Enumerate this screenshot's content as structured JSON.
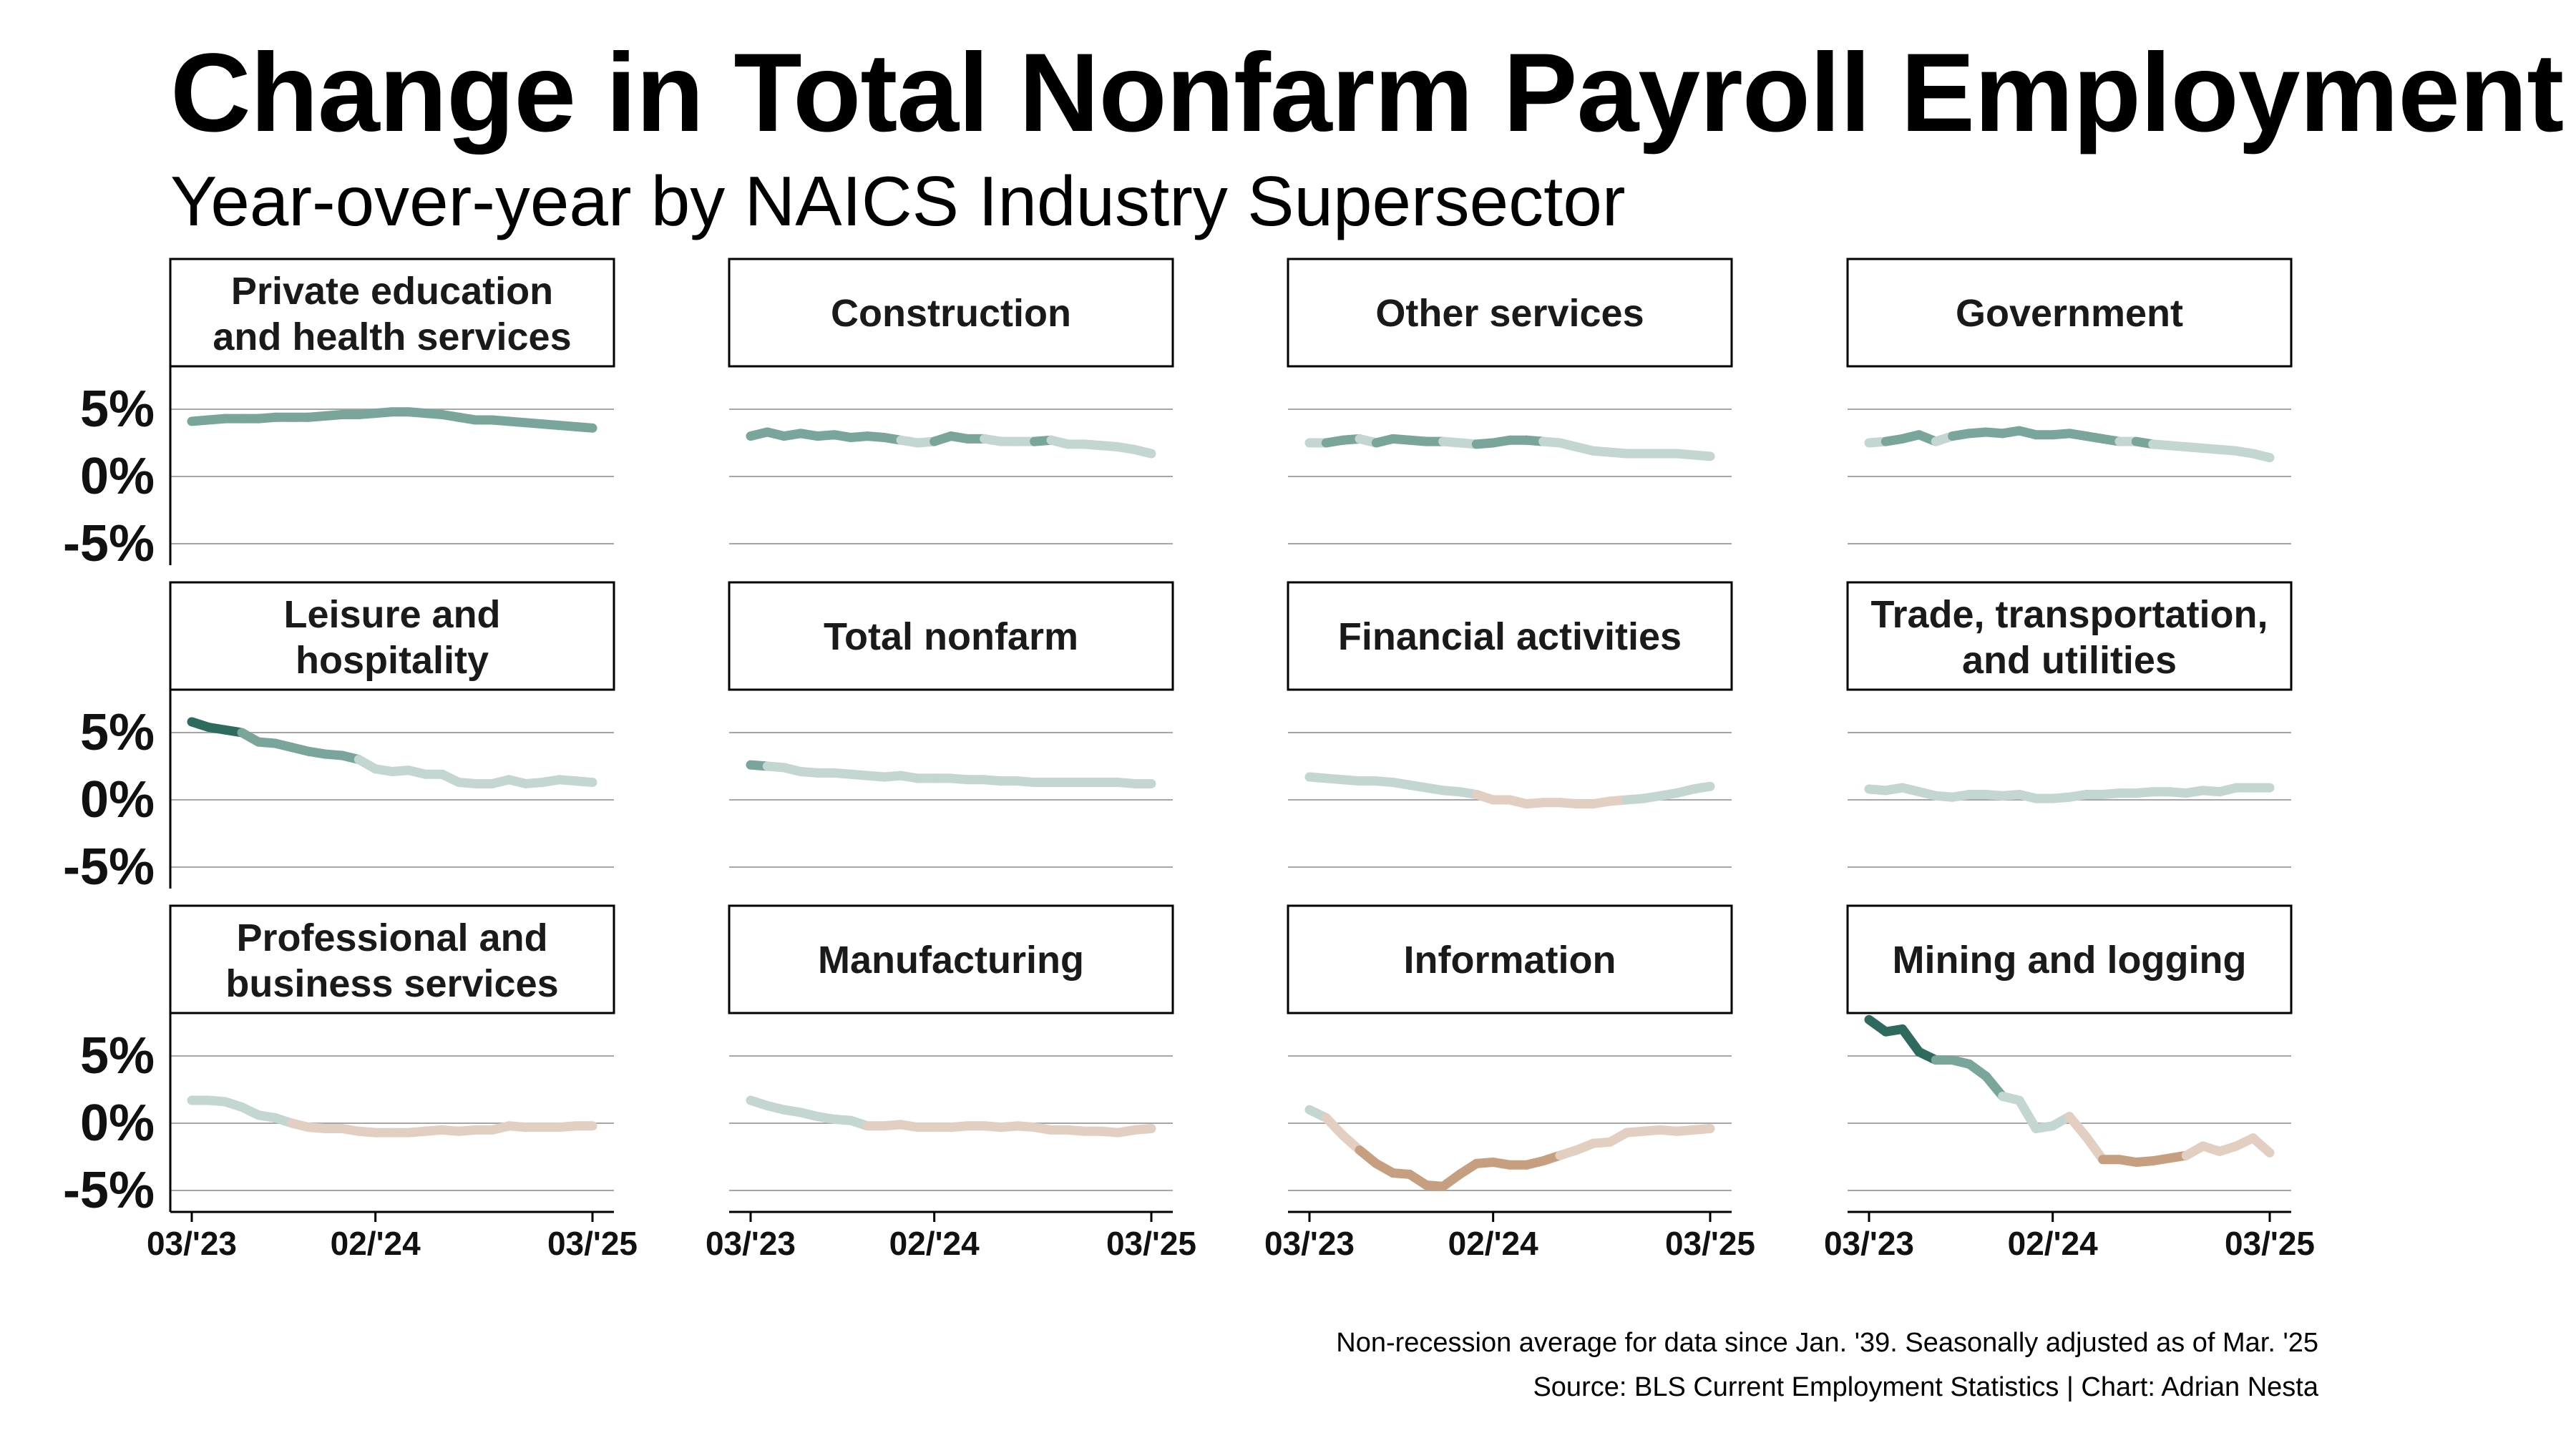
{
  "title": "Change in Total Nonfarm Payroll Employment",
  "subtitle": "Year-over-year by NAICS Industry Supersector",
  "caption": {
    "line1": "Non-recession average for data since Jan. '39. Seasonally adjusted as of Mar. '25",
    "line2": "Source: BLS Current Employment Statistics | Chart: Adrian Nesta"
  },
  "colors": {
    "strong_green": "#2e6b5e",
    "medium_green": "#7aa59b",
    "light_green": "#c3d6d1",
    "light_tan": "#e3cfc2",
    "medium_tan": "#c69f80",
    "grid": "#a6a6a6",
    "frame": "#000000"
  },
  "chart_data": {
    "type": "line",
    "layout": "small-multiples facet grid, 3 rows x 4 columns",
    "title": "Change in Total Nonfarm Payroll Employment",
    "subtitle": "Year-over-year by NAICS Industry Supersector",
    "ylabel": "",
    "xlabel": "",
    "ylim": [
      -5,
      5
    ],
    "yticks": [
      5,
      0,
      -5
    ],
    "ytick_labels": [
      "5%",
      "0%",
      "-5%"
    ],
    "xticks": [
      0,
      11,
      24
    ],
    "xtick_labels": [
      "03/'23",
      "02/'24",
      "03/'25"
    ],
    "x_range": [
      0,
      24
    ],
    "x_description": "monthly, Mar 2023 to Mar 2025",
    "color_rule": "segments colored by distance from non-recession average: darker green = above, light green = near, tan = below",
    "panels": [
      {
        "name": "Private education and health services",
        "color": "medium_green",
        "values": [
          4.1,
          4.2,
          4.3,
          4.3,
          4.3,
          4.4,
          4.4,
          4.4,
          4.5,
          4.6,
          4.6,
          4.7,
          4.8,
          4.8,
          4.7,
          4.6,
          4.4,
          4.2,
          4.2,
          4.1,
          4.0,
          3.9,
          3.8,
          3.7,
          3.6
        ]
      },
      {
        "name": "Construction",
        "color": "medium_green",
        "values": [
          3.0,
          3.3,
          3.0,
          3.2,
          3.0,
          3.1,
          2.9,
          3.0,
          2.9,
          2.7,
          2.5,
          2.6,
          3.0,
          2.8,
          2.8,
          2.6,
          2.6,
          2.6,
          2.7,
          2.4,
          2.4,
          2.3,
          2.2,
          2.0,
          1.7
        ],
        "segment_colors": [
          "medium_green",
          "medium_green",
          "medium_green",
          "medium_green",
          "medium_green",
          "medium_green",
          "medium_green",
          "medium_green",
          "medium_green",
          "light_green",
          "light_green",
          "medium_green",
          "medium_green",
          "medium_green",
          "light_green",
          "light_green",
          "light_green",
          "medium_green",
          "light_green",
          "light_green",
          "light_green",
          "light_green",
          "light_green",
          "light_green"
        ]
      },
      {
        "name": "Other services",
        "color": "medium_green",
        "values": [
          2.5,
          2.5,
          2.7,
          2.8,
          2.5,
          2.8,
          2.7,
          2.6,
          2.6,
          2.5,
          2.4,
          2.5,
          2.7,
          2.7,
          2.6,
          2.5,
          2.2,
          1.9,
          1.8,
          1.7,
          1.7,
          1.7,
          1.7,
          1.6,
          1.5
        ],
        "segment_colors": [
          "light_green",
          "medium_green",
          "medium_green",
          "light_green",
          "medium_green",
          "medium_green",
          "medium_green",
          "medium_green",
          "light_green",
          "light_green",
          "medium_green",
          "medium_green",
          "medium_green",
          "medium_green",
          "light_green",
          "light_green",
          "light_green",
          "light_green",
          "light_green",
          "light_green",
          "light_green",
          "light_green",
          "light_green",
          "light_green"
        ]
      },
      {
        "name": "Government",
        "color": "medium_green",
        "values": [
          2.5,
          2.6,
          2.8,
          3.1,
          2.6,
          3.0,
          3.2,
          3.3,
          3.2,
          3.4,
          3.1,
          3.1,
          3.2,
          3.0,
          2.8,
          2.6,
          2.6,
          2.4,
          2.3,
          2.2,
          2.1,
          2.0,
          1.9,
          1.7,
          1.4
        ],
        "segment_colors": [
          "light_green",
          "medium_green",
          "medium_green",
          "medium_green",
          "light_green",
          "medium_green",
          "medium_green",
          "medium_green",
          "medium_green",
          "medium_green",
          "medium_green",
          "medium_green",
          "medium_green",
          "medium_green",
          "medium_green",
          "light_green",
          "medium_green",
          "light_green",
          "light_green",
          "light_green",
          "light_green",
          "light_green",
          "light_green",
          "light_green"
        ]
      },
      {
        "name": "Leisure and hospitality",
        "color": "strong_green",
        "values": [
          5.8,
          5.4,
          5.2,
          5.0,
          4.3,
          4.2,
          3.9,
          3.6,
          3.4,
          3.3,
          3.0,
          2.3,
          2.1,
          2.2,
          1.9,
          1.9,
          1.3,
          1.2,
          1.2,
          1.5,
          1.2,
          1.3,
          1.5,
          1.4,
          1.3
        ],
        "segment_colors": [
          "strong_green",
          "strong_green",
          "strong_green",
          "medium_green",
          "medium_green",
          "medium_green",
          "medium_green",
          "medium_green",
          "medium_green",
          "medium_green",
          "light_green",
          "light_green",
          "light_green",
          "light_green",
          "light_green",
          "light_green",
          "light_green",
          "light_green",
          "light_green",
          "light_green",
          "light_green",
          "light_green",
          "light_green",
          "light_green"
        ]
      },
      {
        "name": "Total nonfarm",
        "color": "light_green",
        "values": [
          2.6,
          2.5,
          2.4,
          2.1,
          2.0,
          2.0,
          1.9,
          1.8,
          1.7,
          1.8,
          1.6,
          1.6,
          1.6,
          1.5,
          1.5,
          1.4,
          1.4,
          1.3,
          1.3,
          1.3,
          1.3,
          1.3,
          1.3,
          1.2,
          1.2
        ],
        "segment_colors": [
          "medium_green",
          "light_green",
          "light_green",
          "light_green",
          "light_green",
          "light_green",
          "light_green",
          "light_green",
          "light_green",
          "light_green",
          "light_green",
          "light_green",
          "light_green",
          "light_green",
          "light_green",
          "light_green",
          "light_green",
          "light_green",
          "light_green",
          "light_green",
          "light_green",
          "light_green",
          "light_green",
          "light_green"
        ]
      },
      {
        "name": "Financial activities",
        "color": "light_green",
        "values": [
          1.7,
          1.6,
          1.5,
          1.4,
          1.4,
          1.3,
          1.1,
          0.9,
          0.7,
          0.6,
          0.4,
          0.0,
          0.0,
          -0.3,
          -0.2,
          -0.2,
          -0.3,
          -0.3,
          -0.1,
          0.0,
          0.1,
          0.3,
          0.5,
          0.8,
          1.0
        ],
        "segment_colors": [
          "light_green",
          "light_green",
          "light_green",
          "light_green",
          "light_green",
          "light_green",
          "light_green",
          "light_green",
          "light_green",
          "light_green",
          "light_tan",
          "light_tan",
          "light_tan",
          "light_tan",
          "light_tan",
          "light_tan",
          "light_tan",
          "light_tan",
          "light_tan",
          "light_green",
          "light_green",
          "light_green",
          "light_green",
          "light_green"
        ]
      },
      {
        "name": "Trade, transportation, and utilities",
        "color": "light_green",
        "values": [
          0.8,
          0.7,
          0.9,
          0.6,
          0.3,
          0.2,
          0.4,
          0.4,
          0.3,
          0.4,
          0.1,
          0.1,
          0.2,
          0.4,
          0.4,
          0.5,
          0.5,
          0.6,
          0.6,
          0.5,
          0.7,
          0.6,
          0.9,
          0.9,
          0.9
        ]
      },
      {
        "name": "Professional and business services",
        "color": "light_tan",
        "values": [
          1.7,
          1.7,
          1.6,
          1.2,
          0.6,
          0.4,
          0.0,
          -0.3,
          -0.4,
          -0.4,
          -0.6,
          -0.7,
          -0.7,
          -0.7,
          -0.6,
          -0.5,
          -0.6,
          -0.5,
          -0.5,
          -0.2,
          -0.3,
          -0.3,
          -0.3,
          -0.2,
          -0.2
        ],
        "segment_colors": [
          "light_green",
          "light_green",
          "light_green",
          "light_green",
          "light_green",
          "light_green",
          "light_tan",
          "light_tan",
          "light_tan",
          "light_tan",
          "light_tan",
          "light_tan",
          "light_tan",
          "light_tan",
          "light_tan",
          "light_tan",
          "light_tan",
          "light_tan",
          "light_tan",
          "light_tan",
          "light_tan",
          "light_tan",
          "light_tan",
          "light_tan"
        ]
      },
      {
        "name": "Manufacturing",
        "color": "light_tan",
        "values": [
          1.7,
          1.3,
          1.0,
          0.8,
          0.5,
          0.3,
          0.2,
          -0.2,
          -0.2,
          -0.1,
          -0.3,
          -0.3,
          -0.3,
          -0.2,
          -0.2,
          -0.3,
          -0.2,
          -0.3,
          -0.5,
          -0.5,
          -0.6,
          -0.6,
          -0.7,
          -0.5,
          -0.4
        ],
        "segment_colors": [
          "light_green",
          "light_green",
          "light_green",
          "light_green",
          "light_green",
          "light_green",
          "light_green",
          "light_tan",
          "light_tan",
          "light_tan",
          "light_tan",
          "light_tan",
          "light_tan",
          "light_tan",
          "light_tan",
          "light_tan",
          "light_tan",
          "light_tan",
          "light_tan",
          "light_tan",
          "light_tan",
          "light_tan",
          "light_tan",
          "light_tan"
        ]
      },
      {
        "name": "Information",
        "color": "medium_tan",
        "values": [
          1.0,
          0.4,
          -0.9,
          -2.0,
          -3.0,
          -3.7,
          -3.8,
          -4.6,
          -4.7,
          -3.8,
          -3.0,
          -2.9,
          -3.1,
          -3.1,
          -2.8,
          -2.4,
          -2.0,
          -1.5,
          -1.4,
          -0.7,
          -0.6,
          -0.5,
          -0.6,
          -0.5,
          -0.4
        ],
        "segment_colors": [
          "light_green",
          "light_tan",
          "light_tan",
          "medium_tan",
          "medium_tan",
          "medium_tan",
          "medium_tan",
          "medium_tan",
          "medium_tan",
          "medium_tan",
          "medium_tan",
          "medium_tan",
          "medium_tan",
          "medium_tan",
          "medium_tan",
          "light_tan",
          "light_tan",
          "light_tan",
          "light_tan",
          "light_tan",
          "light_tan",
          "light_tan",
          "light_tan",
          "light_tan"
        ]
      },
      {
        "name": "Mining and logging",
        "color": "strong_green",
        "values": [
          7.7,
          6.8,
          7.0,
          5.3,
          4.7,
          4.7,
          4.4,
          3.5,
          2.0,
          1.7,
          -0.4,
          -0.2,
          0.5,
          -1.0,
          -2.7,
          -2.7,
          -2.9,
          -2.8,
          -2.6,
          -2.4,
          -1.7,
          -2.1,
          -1.7,
          -1.1,
          -2.2
        ],
        "segment_colors": [
          "strong_green",
          "strong_green",
          "strong_green",
          "strong_green",
          "medium_green",
          "medium_green",
          "medium_green",
          "medium_green",
          "light_green",
          "light_green",
          "light_green",
          "light_green",
          "light_tan",
          "light_tan",
          "medium_tan",
          "medium_tan",
          "medium_tan",
          "medium_tan",
          "medium_tan",
          "light_tan",
          "light_tan",
          "light_tan",
          "light_tan",
          "light_tan"
        ]
      }
    ]
  }
}
